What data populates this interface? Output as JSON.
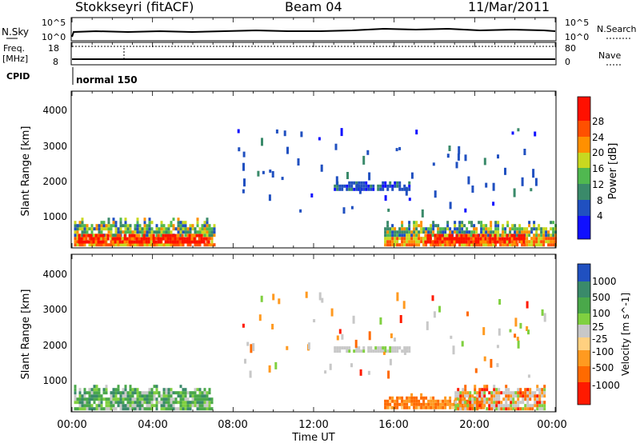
{
  "header": {
    "station": "Stokkseyri (fitACF)",
    "beam": "Beam 04",
    "date": "11/Mar/2011"
  },
  "strip_sky": {
    "left_label": "N.Sky",
    "left_ticks": [
      "10^5",
      "10^0"
    ],
    "right_ticks": [
      "10^5",
      "10^0"
    ],
    "right_label": "N.Search"
  },
  "strip_freq": {
    "left_label_1": "Freq.",
    "left_label_2": "[MHz]",
    "left_ticks": [
      "18",
      "8"
    ],
    "right_ticks": [
      "80",
      "0"
    ],
    "right_label": "Nave"
  },
  "cpid": {
    "label": "CPID",
    "mode": "normal 150"
  },
  "x_axis": {
    "ticks": [
      "00:00",
      "04:00",
      "08:00",
      "12:00",
      "16:00",
      "20:00",
      "00:00"
    ],
    "label": "Time UT"
  },
  "chart_data": [
    {
      "type": "heatmap",
      "panel": "power",
      "xlabel": "Time UT",
      "ylabel": "Slant Range [km]",
      "x_unit": "hours",
      "xlim": [
        0,
        24
      ],
      "ylim": [
        180,
        4500
      ],
      "yticks": [
        "1000",
        "2000",
        "3000",
        "4000"
      ],
      "colorbar_label": "Power [dB]",
      "colorbar_ticks": [
        "4",
        "8",
        "12",
        "16",
        "20",
        "24",
        "28"
      ],
      "colorbar_colors": [
        "#1010ff",
        "#2050c0",
        "#3a8a6a",
        "#50b850",
        "#c8d820",
        "#ff9000",
        "#ff5000",
        "#ff1000"
      ],
      "regions": [
        {
          "t0": 0.1,
          "t1": 7.1,
          "r0": 220,
          "r1": 1100,
          "level": "mixed-high"
        },
        {
          "t0": 0.3,
          "t1": 6.8,
          "r0": 300,
          "r1": 650,
          "level": "high"
        },
        {
          "t0": 13.0,
          "t1": 16.8,
          "r0": 1750,
          "r1": 2050,
          "level": "low"
        },
        {
          "t0": 15.5,
          "t1": 24.0,
          "r0": 220,
          "r1": 1000,
          "level": "mixed-high"
        },
        {
          "t0": 17.5,
          "t1": 22.5,
          "r0": 300,
          "r1": 650,
          "level": "high"
        }
      ]
    },
    {
      "type": "heatmap",
      "panel": "velocity",
      "xlabel": "Time UT",
      "ylabel": "Slant Range [km]",
      "x_unit": "hours",
      "xlim": [
        0,
        24
      ],
      "ylim": [
        180,
        4500
      ],
      "yticks": [
        "1000",
        "2000",
        "3000",
        "4000"
      ],
      "colorbar_label": "Velocity [m s^-1]",
      "colorbar_ticks": [
        "1000",
        "500",
        "100",
        "25",
        "-25",
        "-100",
        "-500",
        "-1000"
      ],
      "colorbar_colors": [
        "#2050c0",
        "#3a8a6a",
        "#4aa84a",
        "#80d040",
        "#c8c8c8",
        "#ffd080",
        "#ff9a20",
        "#ff6a00",
        "#ff1a00"
      ],
      "regions": [
        {
          "t0": 0.1,
          "t1": 6.9,
          "r0": 220,
          "r1": 1000,
          "level": "positive"
        },
        {
          "t0": 13.0,
          "t1": 16.8,
          "r0": 1800,
          "r1": 2050,
          "level": "ground"
        },
        {
          "t0": 15.5,
          "t1": 20.5,
          "r0": 250,
          "r1": 700,
          "level": "negative"
        },
        {
          "t0": 19.0,
          "t1": 23.5,
          "r0": 220,
          "r1": 1000,
          "level": "mixed"
        }
      ]
    }
  ]
}
